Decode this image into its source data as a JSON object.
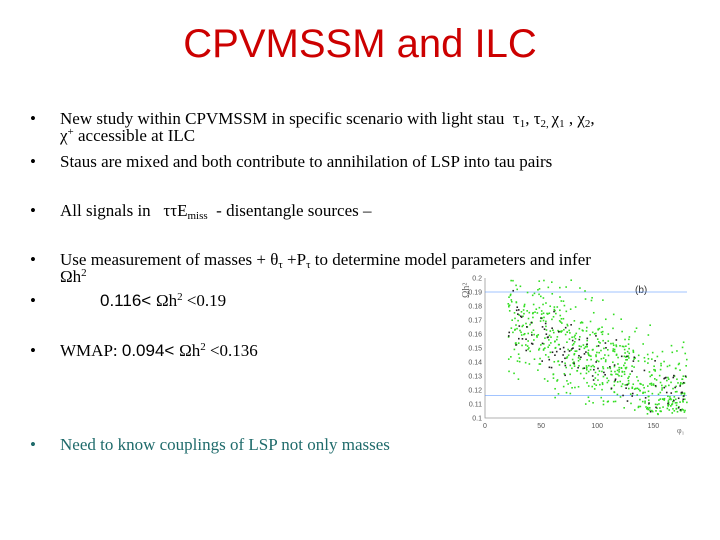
{
  "title": "CPVMSSM and ILC",
  "bullet_char": "•",
  "b1": {
    "text": "New study within CPVMSSM in specific scenario with light stau",
    "tau": "τ",
    "sub1": "1",
    "comma1": ", ",
    "sub2": "2, ",
    "chi": "χ",
    "sub3": "1",
    "comma2": " , ",
    "sub4": "2",
    "comma3": ",",
    "line2_chi": "χ",
    "line2_sup": "+",
    "line2_text": " accessible at ILC"
  },
  "b2": {
    "text": "Staus are mixed and both contribute to annihilation of LSP into tau pairs"
  },
  "b3": {
    "pre": "All signals in ",
    "tautau": "ττE",
    "miss": "miss",
    "post": " - disentangle sources –"
  },
  "b4": {
    "pre": "Use measurement of masses + θ",
    "sub_tau1": "τ",
    "mid": " +P",
    "sub_tau2": "τ",
    "post": " to determine model parameters and infer",
    "line2_omega": "Ωh",
    "line2_sup": "2"
  },
  "b5": {
    "pre": "0.116< ",
    "omega": "Ωh",
    "sup": "2",
    "post": " <0.19"
  },
  "b6": {
    "label": "WMAP: ",
    "pre": "0.094< ",
    "omega": "Ωh",
    "sup": "2",
    "post": " <0.136"
  },
  "b7": {
    "text": "Need to know couplings of LSP not only masses"
  },
  "colors": {
    "title": "#cc0000",
    "bullet_teal": "#1f6b6b",
    "points_green": "#33dd22",
    "points_black": "#222222",
    "band": "#4488ff"
  },
  "chart_data": {
    "type": "scatter",
    "title": "",
    "panel_label": "(b)",
    "ylabel": "Ωh²",
    "xlabel": "φ₁",
    "ylim": [
      0.1,
      0.2
    ],
    "yticks": [
      "0.2",
      "0.19",
      "0.18",
      "0.17",
      "0.16",
      "0.15",
      "0.14",
      "0.13",
      "0.12",
      "0.11",
      "0.1"
    ],
    "xlim": [
      0,
      180
    ],
    "xticks": [
      "0",
      "50",
      "100",
      "150"
    ],
    "band": [
      0.116,
      0.19
    ],
    "series": [
      {
        "color": "#33dd22",
        "trend": {
          "x": [
            0,
            180
          ],
          "y": [
            0.18,
            0.112
          ]
        },
        "spread": 0.018,
        "count": 700
      },
      {
        "color": "#222222",
        "trend": {
          "x": [
            0,
            180
          ],
          "y": [
            0.175,
            0.114
          ]
        },
        "spread": 0.01,
        "count": 120
      }
    ]
  }
}
